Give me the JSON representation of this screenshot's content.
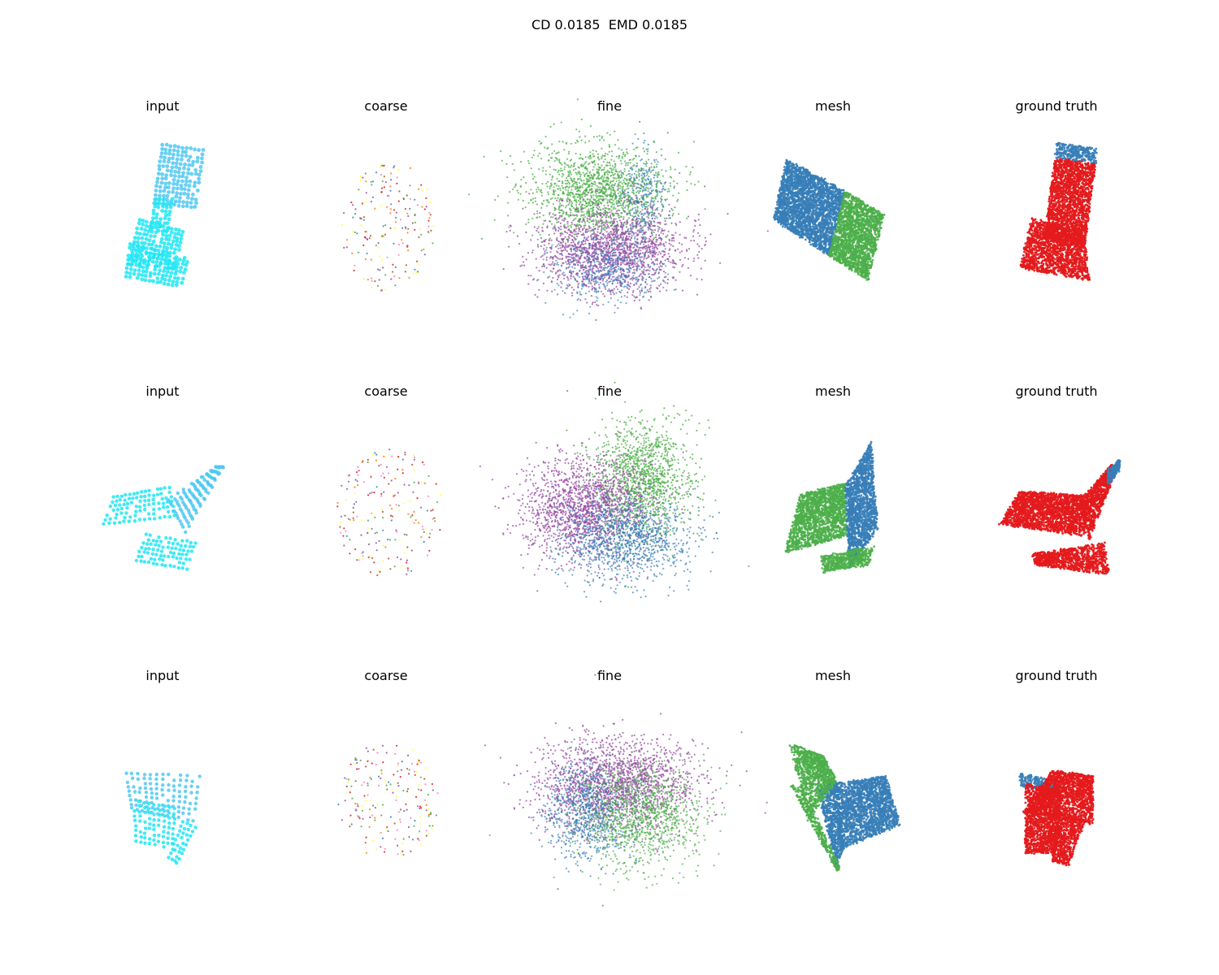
{
  "figure": {
    "title": "CD 0.0185  EMD 0.0185"
  },
  "columns": [
    "input",
    "coarse",
    "fine",
    "mesh",
    "ground truth"
  ],
  "rows": [
    {
      "panels": [
        "input",
        "coarse",
        "fine",
        "mesh",
        "ground truth"
      ]
    },
    {
      "panels": [
        "input",
        "coarse",
        "fine",
        "mesh",
        "ground truth"
      ]
    },
    {
      "panels": [
        "input",
        "coarse",
        "fine",
        "mesh",
        "ground truth"
      ]
    }
  ],
  "colors": {
    "input_cyan": "#1ee6f5",
    "input_blue": "#4fc8f2",
    "part_blue": "#377eb8",
    "part_green": "#4daf4a",
    "part_purple": "#984ea3",
    "part_red": "#e41a1c",
    "coarse_pink": "#f781bf",
    "coarse_orange": "#ff7f00",
    "coarse_yellow": "#ffff33",
    "coarse_brown": "#a65628"
  }
}
